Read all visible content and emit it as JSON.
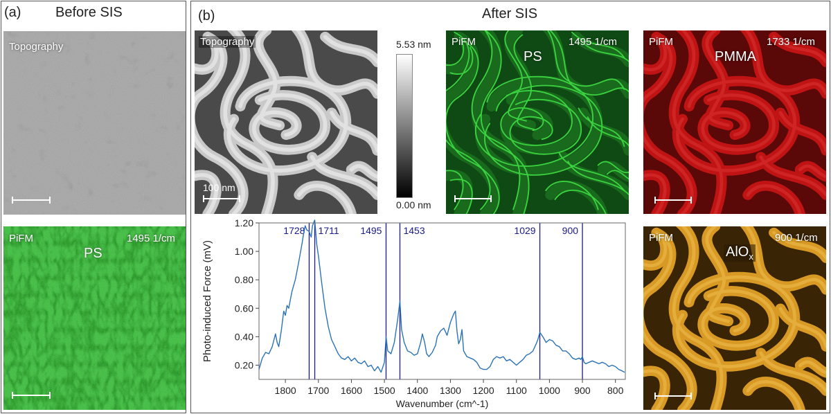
{
  "panel_a": {
    "letter": "(a)",
    "title": "Before SIS",
    "topo_label": "Topography",
    "pifm_label": "PiFM",
    "pifm_species": "PS",
    "pifm_wavenumber": "1495 1/cm"
  },
  "panel_b": {
    "letter": "(b)",
    "title": "After SIS",
    "topo_label": "Topography",
    "scalebar_label": "100 nm",
    "colorbar_max": "5.53 nm",
    "colorbar_min": "0.00 nm",
    "ps": {
      "label": "PiFM",
      "species": "PS",
      "wavenumber": "1495 1/cm"
    },
    "pmma": {
      "label": "PiFM",
      "species": "PMMA",
      "wavenumber": "1733 1/cm"
    },
    "alox": {
      "label": "PiFM",
      "species_base": "AlO",
      "species_sub": "x",
      "wavenumber": "900 1/cm"
    }
  },
  "colors": {
    "ps_green": "#1f8a1f",
    "pmma_red": "#b41010",
    "alox_gold": "#c8901c",
    "spectrum_line": "#2a72b8",
    "marker_line": "#1a1a8c"
  },
  "chart_data": {
    "type": "line",
    "title": "",
    "xlabel": "Wavenumber (cm^-1)",
    "ylabel": "Photo-induced Force (mV)",
    "xlim": [
      1880,
      770
    ],
    "ylim": [
      0.1,
      1.2
    ],
    "x_reversed": true,
    "x_ticks": [
      1800,
      1700,
      1600,
      1500,
      1400,
      1300,
      1200,
      1100,
      1000,
      900,
      800
    ],
    "y_ticks": [
      0.2,
      0.4,
      0.6,
      0.8,
      1.0,
      1.2
    ],
    "y_tick_labels": [
      "0.20",
      "0.40",
      "0.60",
      "0.80",
      "1.00",
      "1.20"
    ],
    "markers": [
      1728,
      1711,
      1495,
      1453,
      1029,
      900
    ],
    "series": [
      {
        "x": [
          1880,
          1870,
          1860,
          1850,
          1840,
          1830,
          1825,
          1820,
          1812,
          1805,
          1800,
          1795,
          1790,
          1780,
          1770,
          1760,
          1750,
          1745,
          1740,
          1735,
          1728,
          1722,
          1718,
          1711,
          1705,
          1700,
          1690,
          1680,
          1670,
          1660,
          1650,
          1640,
          1630,
          1620,
          1610,
          1600,
          1590,
          1580,
          1570,
          1560,
          1550,
          1540,
          1530,
          1520,
          1510,
          1500,
          1495,
          1490,
          1480,
          1470,
          1460,
          1453,
          1448,
          1440,
          1430,
          1420,
          1410,
          1400,
          1390,
          1385,
          1378,
          1372,
          1365,
          1355,
          1345,
          1340,
          1330,
          1320,
          1310,
          1300,
          1290,
          1285,
          1280,
          1275,
          1270,
          1265,
          1260,
          1250,
          1240,
          1230,
          1220,
          1210,
          1200,
          1190,
          1180,
          1170,
          1160,
          1150,
          1140,
          1130,
          1120,
          1110,
          1100,
          1090,
          1080,
          1070,
          1060,
          1050,
          1040,
          1035,
          1029,
          1020,
          1010,
          1000,
          990,
          980,
          970,
          960,
          950,
          940,
          930,
          920,
          910,
          905,
          900,
          895,
          890,
          880,
          870,
          860,
          850,
          840,
          830,
          820,
          810,
          800,
          790,
          780,
          772
        ],
        "y": [
          0.17,
          0.25,
          0.29,
          0.28,
          0.33,
          0.42,
          0.36,
          0.33,
          0.45,
          0.58,
          0.55,
          0.62,
          0.6,
          0.72,
          0.8,
          0.92,
          1.05,
          1.12,
          1.18,
          1.15,
          1.14,
          1.1,
          1.18,
          1.22,
          1.05,
          0.97,
          0.78,
          0.6,
          0.47,
          0.38,
          0.33,
          0.28,
          0.25,
          0.24,
          0.26,
          0.23,
          0.25,
          0.22,
          0.21,
          0.23,
          0.19,
          0.2,
          0.16,
          0.19,
          0.15,
          0.22,
          0.4,
          0.3,
          0.28,
          0.36,
          0.52,
          0.65,
          0.45,
          0.36,
          0.3,
          0.29,
          0.27,
          0.28,
          0.36,
          0.42,
          0.36,
          0.28,
          0.26,
          0.29,
          0.34,
          0.4,
          0.44,
          0.46,
          0.41,
          0.5,
          0.56,
          0.58,
          0.44,
          0.35,
          0.38,
          0.45,
          0.3,
          0.26,
          0.25,
          0.24,
          0.22,
          0.18,
          0.17,
          0.17,
          0.19,
          0.24,
          0.26,
          0.25,
          0.26,
          0.23,
          0.24,
          0.22,
          0.2,
          0.22,
          0.24,
          0.27,
          0.28,
          0.3,
          0.35,
          0.38,
          0.43,
          0.4,
          0.36,
          0.38,
          0.37,
          0.34,
          0.33,
          0.3,
          0.3,
          0.28,
          0.25,
          0.24,
          0.25,
          0.24,
          0.26,
          0.22,
          0.21,
          0.22,
          0.23,
          0.22,
          0.21,
          0.22,
          0.21,
          0.19,
          0.2,
          0.19,
          0.17,
          0.16,
          0.15
        ]
      }
    ]
  }
}
